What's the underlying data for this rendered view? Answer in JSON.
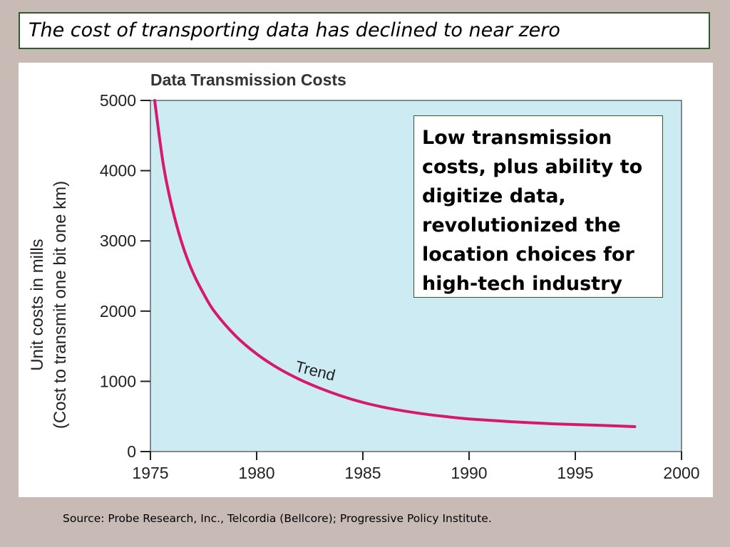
{
  "slide": {
    "title": "The cost of transporting data has declined to near zero",
    "callout": "Low transmission costs, plus ability to digitize data, revolutionized the location choices for high-tech industry",
    "source": "Source:  Probe Research, Inc., Telcordia (Bellcore); Progressive Policy Institute."
  },
  "chart_data": {
    "type": "line",
    "title": "Data Transmission Costs",
    "ylabel_line1": "Unit costs in mills",
    "ylabel_line2": "(Cost to transmit one bit one km)",
    "xlabel": "",
    "xlim": [
      1975,
      2000
    ],
    "ylim": [
      0,
      5000
    ],
    "x_ticks": [
      1975,
      1980,
      1985,
      1990,
      1995,
      2000
    ],
    "y_ticks": [
      0,
      1000,
      2000,
      3000,
      4000,
      5000
    ],
    "grid": false,
    "plot_background": "#cdebf2",
    "series": [
      {
        "name": "Trend",
        "color": "#d6186e",
        "x": [
          1975.2,
          1975.6,
          1976,
          1976.5,
          1977,
          1977.5,
          1978,
          1979,
          1980,
          1981,
          1982,
          1983,
          1984,
          1985,
          1986,
          1987,
          1988,
          1989,
          1990,
          1992,
          1994,
          1996,
          1997.8
        ],
        "y": [
          5000,
          4100,
          3500,
          2950,
          2550,
          2250,
          2000,
          1650,
          1390,
          1190,
          1030,
          900,
          790,
          700,
          630,
          575,
          530,
          495,
          465,
          425,
          395,
          375,
          355
        ]
      }
    ]
  }
}
